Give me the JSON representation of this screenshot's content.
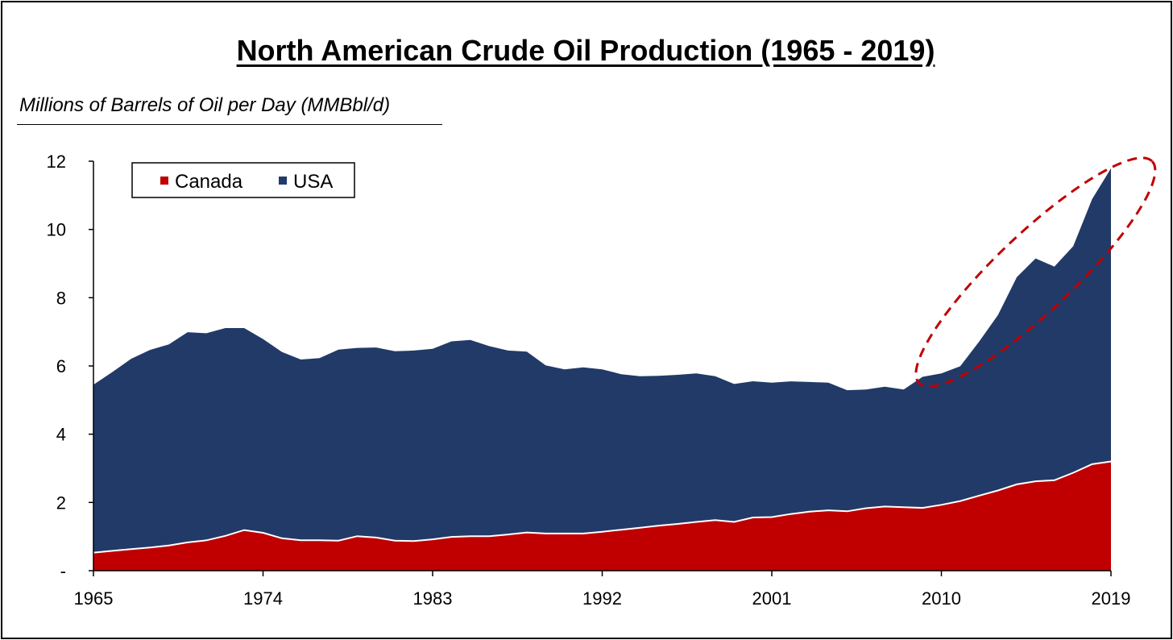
{
  "chart_data": {
    "type": "area",
    "stacked": true,
    "title": "North American Crude Oil Production (1965 - 2019)",
    "ylabel": "Millions of Barrels of Oil per Day (MMBbl/d)",
    "xlim": [
      1965,
      2019
    ],
    "ylim": [
      0,
      12
    ],
    "x_ticks": [
      1965,
      1974,
      1983,
      1992,
      2001,
      2010,
      2019
    ],
    "x_tick_labels": [
      "1965",
      "1974",
      "1983",
      "1992",
      "2001",
      "2010",
      "2019"
    ],
    "y_ticks": [
      0,
      2,
      4,
      6,
      8,
      10,
      12
    ],
    "y_tick_labels": [
      "-",
      "2",
      "4",
      "6",
      "8",
      "10",
      "12"
    ],
    "grid": false,
    "legend_position": "top-left",
    "x": [
      1965,
      1966,
      1967,
      1968,
      1969,
      1970,
      1971,
      1972,
      1973,
      1974,
      1975,
      1976,
      1977,
      1978,
      1979,
      1980,
      1981,
      1982,
      1983,
      1984,
      1985,
      1986,
      1987,
      1988,
      1989,
      1990,
      1991,
      1992,
      1993,
      1994,
      1995,
      1996,
      1997,
      1998,
      1999,
      2000,
      2001,
      2002,
      2003,
      2004,
      2005,
      2006,
      2007,
      2008,
      2009,
      2010,
      2011,
      2012,
      2013,
      2014,
      2015,
      2016,
      2017,
      2018,
      2019
    ],
    "series": [
      {
        "name": "Canada",
        "color": "#C00000",
        "values": [
          0.53,
          0.58,
          0.63,
          0.68,
          0.74,
          0.83,
          0.89,
          1.02,
          1.19,
          1.11,
          0.95,
          0.89,
          0.89,
          0.88,
          1.01,
          0.97,
          0.88,
          0.87,
          0.92,
          0.99,
          1.01,
          1.01,
          1.06,
          1.12,
          1.09,
          1.09,
          1.09,
          1.14,
          1.2,
          1.26,
          1.32,
          1.37,
          1.43,
          1.48,
          1.43,
          1.56,
          1.57,
          1.66,
          1.73,
          1.77,
          1.74,
          1.83,
          1.88,
          1.86,
          1.84,
          1.93,
          2.04,
          2.2,
          2.35,
          2.53,
          2.62,
          2.65,
          2.87,
          3.12,
          3.2
        ]
      },
      {
        "name": "USA",
        "color": "#223A67",
        "values": [
          4.92,
          5.24,
          5.58,
          5.79,
          5.89,
          6.16,
          6.07,
          6.09,
          5.92,
          5.68,
          5.46,
          5.3,
          5.34,
          5.6,
          5.52,
          5.57,
          5.55,
          5.58,
          5.58,
          5.73,
          5.75,
          5.57,
          5.39,
          5.3,
          4.93,
          4.81,
          4.87,
          4.76,
          4.56,
          4.44,
          4.39,
          4.37,
          4.35,
          4.22,
          4.04,
          3.99,
          3.94,
          3.89,
          3.8,
          3.74,
          3.55,
          3.48,
          3.51,
          3.45,
          3.84,
          3.85,
          3.95,
          4.51,
          5.14,
          6.07,
          6.53,
          6.26,
          6.64,
          7.77,
          8.59
        ]
      }
    ],
    "annotations": [
      {
        "type": "dashed-ellipse",
        "color": "#C00000",
        "x_range": [
          2009,
          2021
        ],
        "y_range": [
          5.6,
          11.9
        ]
      }
    ]
  }
}
